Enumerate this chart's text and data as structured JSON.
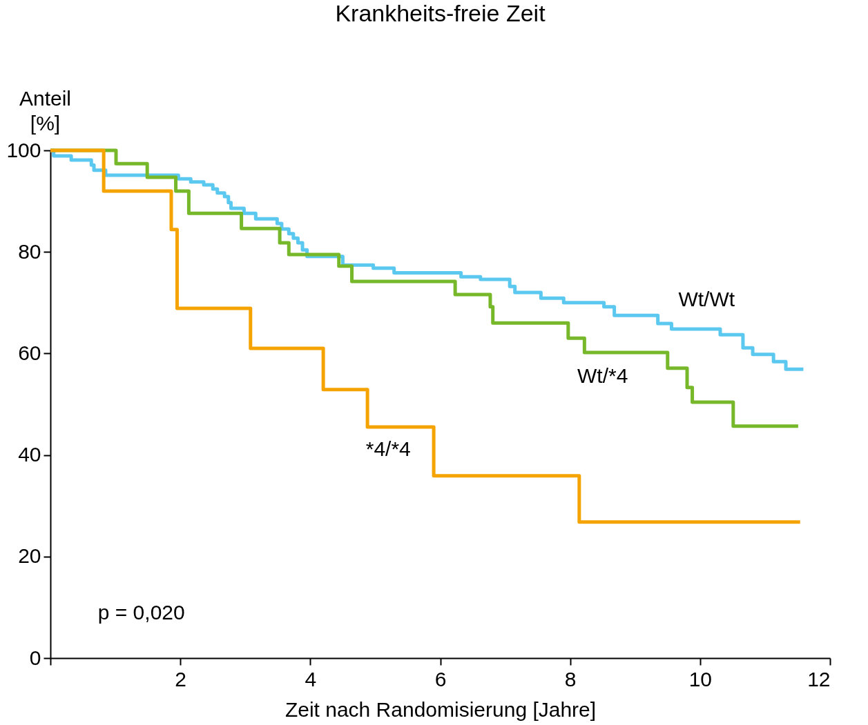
{
  "chart_data": {
    "type": "step",
    "title": "Krankheits-freie Zeit",
    "xlabel": "Zeit nach Randomisierung [Jahre]",
    "ylabel": "Anteil [%]",
    "xlim": [
      0,
      12
    ],
    "ylim": [
      0,
      100
    ],
    "xticks": [
      {
        "value": 0,
        "label": null
      },
      2,
      4,
      6,
      8,
      10,
      12
    ],
    "yticks": [
      0,
      20,
      40,
      60,
      80,
      100
    ],
    "grid": false,
    "legend": false,
    "marker": "none",
    "line_style": "solid",
    "annotations": [
      "p = 0,020"
    ],
    "series": [
      {
        "name": "Wt/Wt",
        "color": "#5bc8ef",
        "x": [
          0,
          0.05,
          0.32,
          0.63,
          0.67,
          0.85,
          1.97,
          2.16,
          2.36,
          2.5,
          2.57,
          2.68,
          2.74,
          2.78,
          2.98,
          3.16,
          3.49,
          3.56,
          3.67,
          3.74,
          3.81,
          3.88,
          3.95,
          4.5,
          4.97,
          5.29,
          6.32,
          6.62,
          7.07,
          7.15,
          7.55,
          7.9,
          8.52,
          8.68,
          9.35,
          9.56,
          10.31,
          10.66,
          10.81,
          11.13,
          11.32,
          11.59
        ],
        "values": [
          100,
          98.9,
          98.1,
          97.1,
          96.1,
          95.1,
          94.4,
          93.8,
          93.2,
          92.4,
          91.6,
          90.9,
          89.7,
          88.6,
          87.6,
          86.5,
          85.6,
          84.5,
          83.6,
          82.7,
          81.8,
          80.4,
          79.1,
          77.4,
          76.8,
          75.9,
          75.1,
          74.6,
          73.2,
          72.0,
          70.9,
          70.0,
          69.2,
          67.5,
          65.9,
          64.8,
          63.7,
          61.1,
          59.8,
          58.4,
          56.9,
          56.9
        ]
      },
      {
        "name": "Wt/*4",
        "color": "#76b82a",
        "x": [
          0,
          1.01,
          1.49,
          1.93,
          2.13,
          2.94,
          3.53,
          3.67,
          4.44,
          4.64,
          6.23,
          6.77,
          6.81,
          7.97,
          8.22,
          9.5,
          9.8,
          9.88,
          10.51,
          11.51
        ],
        "values": [
          100,
          97.4,
          94.7,
          92.0,
          87.6,
          84.6,
          81.8,
          79.5,
          77.2,
          74.2,
          71.6,
          69.2,
          66.0,
          63.0,
          60.2,
          57.1,
          53.3,
          50.4,
          45.7,
          45.7
        ]
      },
      {
        "name": "*4/*4",
        "color": "#f5a300",
        "x": [
          0,
          0.82,
          1.86,
          1.95,
          3.08,
          4.2,
          4.88,
          5.9,
          8.14,
          11.54
        ],
        "values": [
          100,
          92.0,
          84.4,
          68.9,
          61.0,
          52.9,
          45.5,
          35.9,
          26.8,
          26.8
        ]
      }
    ]
  }
}
